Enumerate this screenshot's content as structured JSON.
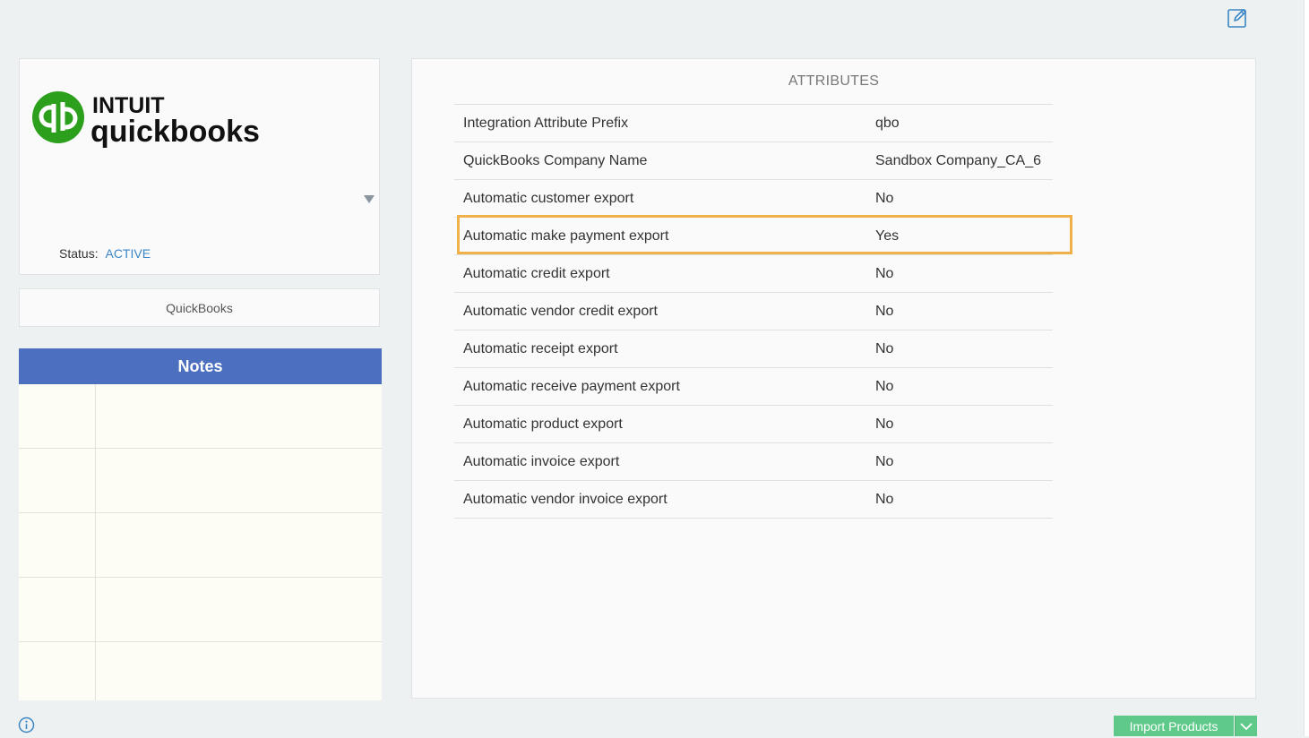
{
  "integration": {
    "logo_brand": "INTUIT",
    "logo_product": "quickbooks",
    "status_label": "Status:",
    "status_value": "ACTIVE",
    "name": "QuickBooks"
  },
  "notes": {
    "title": "Notes"
  },
  "attributes": {
    "title": "ATTRIBUTES",
    "rows": [
      {
        "key": "Integration Attribute Prefix",
        "value": "qbo"
      },
      {
        "key": "QuickBooks Company Name",
        "value": "Sandbox Company_CA_6"
      },
      {
        "key": "Automatic customer export",
        "value": "No"
      },
      {
        "key": "Automatic make payment export",
        "value": "Yes"
      },
      {
        "key": "Automatic credit export",
        "value": "No"
      },
      {
        "key": "Automatic vendor credit export",
        "value": "No"
      },
      {
        "key": "Automatic receipt export",
        "value": "No"
      },
      {
        "key": "Automatic receive payment export",
        "value": "No"
      },
      {
        "key": "Automatic product export",
        "value": "No"
      },
      {
        "key": "Automatic invoice export",
        "value": "No"
      },
      {
        "key": "Automatic vendor invoice export",
        "value": "No"
      }
    ]
  },
  "actions": {
    "import_label": "Import Products"
  },
  "colors": {
    "accent": "#4d6fbf",
    "active": "#3b86c4",
    "highlight": "#f0b04a",
    "import_button": "#5fc98a",
    "brand_green": "#2ca01c"
  },
  "icons": {
    "edit": "edit-icon",
    "info": "info-icon",
    "dropdown": "caret-down-icon",
    "import_caret": "chevron-down-icon"
  }
}
